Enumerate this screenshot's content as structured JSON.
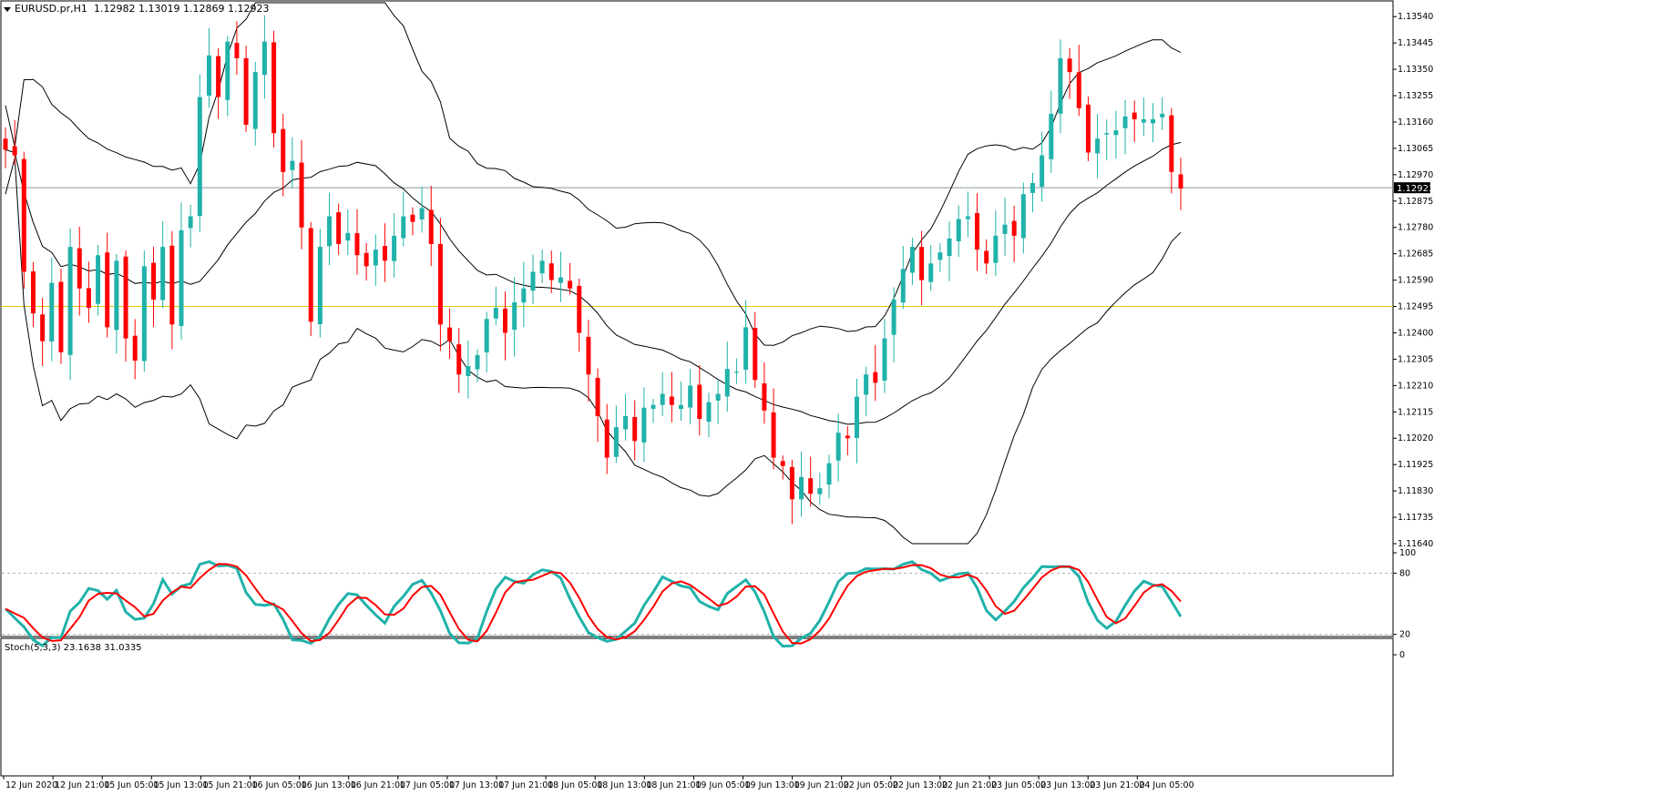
{
  "header": {
    "symbol_text": "EURUSD.pr,H1",
    "ohlc_text": "1.12982 1.13019 1.12869 1.12923"
  },
  "current_price_label": "1.12923",
  "stoch_header": "Stoch(5,3,3) 23.1638 31.0335",
  "colors": {
    "bull": "#20b2aa",
    "bear": "#ff0000",
    "bands": "#000000",
    "price_line": "#8a9aa0",
    "level_line": "#e6c800",
    "stoch_main": "#20b2aa",
    "stoch_signal": "#ff0000"
  },
  "chart_data": [
    {
      "type": "candlestick",
      "overlay": "Bollinger Bands",
      "ylim": [
        1.1164,
        1.1359
      ],
      "y_ticks": [
        "1.13540",
        "1.13445",
        "1.13350",
        "1.13255",
        "1.13160",
        "1.13065",
        "1.12970",
        "1.12875",
        "1.12780",
        "1.12685",
        "1.12590",
        "1.12495",
        "1.12400",
        "1.12305",
        "1.12210",
        "1.12115",
        "1.12020",
        "1.11925",
        "1.11830",
        "1.11735",
        "1.11640"
      ],
      "x_labels": [
        "12 Jun 2020",
        "12 Jun 21:00",
        "15 Jun 05:00",
        "15 Jun 13:00",
        "15 Jun 21:00",
        "16 Jun 05:00",
        "16 Jun 13:00",
        "16 Jun 21:00",
        "17 Jun 05:00",
        "17 Jun 13:00",
        "17 Jun 21:00",
        "18 Jun 05:00",
        "18 Jun 13:00",
        "18 Jun 21:00",
        "19 Jun 05:00",
        "19 Jun 13:00",
        "19 Jun 21:00",
        "22 Jun 05:00",
        "22 Jun 13:00",
        "22 Jun 21:00",
        "23 Jun 05:00",
        "23 Jun 13:00",
        "23 Jun 21:00",
        "24 Jun 05:00"
      ],
      "current_price": 1.12923,
      "horizontal_level": 1.12495,
      "close_path": [
        1.1306,
        1.1304,
        1.1262,
        1.1247,
        1.1237,
        1.1258,
        1.1233,
        1.1271,
        1.1256,
        1.1249,
        1.1268,
        1.1242,
        1.1266,
        1.1238,
        1.123,
        1.1264,
        1.1252,
        1.1271,
        1.1243,
        1.1277,
        1.1282,
        1.1325,
        1.134,
        1.1325,
        1.1345,
        1.1339,
        1.1315,
        1.1334,
        1.1345,
        1.1312,
        1.1298,
        1.1302,
        1.1278,
        1.1244,
        1.1271,
        1.1282,
        1.1272,
        1.1276,
        1.1268,
        1.1264,
        1.127,
        1.1266,
        1.1275,
        1.1282,
        1.128,
        1.1285,
        1.1272,
        1.1243,
        1.1237,
        1.1225,
        1.1228,
        1.1232,
        1.1245,
        1.1249,
        1.124,
        1.1251,
        1.1256,
        1.1262,
        1.1266,
        1.1259,
        1.126,
        1.1256,
        1.124,
        1.1225,
        1.121,
        1.1195,
        1.1206,
        1.121,
        1.1201,
        1.1213,
        1.1214,
        1.1218,
        1.1214,
        1.1214,
        1.1221,
        1.1209,
        1.1215,
        1.1218,
        1.1227,
        1.1226,
        1.1242,
        1.1223,
        1.1212,
        1.1195,
        1.1192,
        1.118,
        1.1188,
        1.1182,
        1.1184,
        1.1193,
        1.1204,
        1.1202,
        1.1217,
        1.1225,
        1.1222,
        1.1238,
        1.1252,
        1.1263,
        1.1271,
        1.1259,
        1.1265,
        1.1269,
        1.1274,
        1.1281,
        1.1282,
        1.127,
        1.1265,
        1.1275,
        1.1279,
        1.1275,
        1.129,
        1.1294,
        1.1304,
        1.1319,
        1.1339,
        1.1334,
        1.1321,
        1.1305,
        1.131,
        1.1312,
        1.1313,
        1.1318,
        1.1317,
        1.1317,
        1.1317,
        1.1319,
        1.1298,
        1.1292
      ],
      "stochastic": {
        "label": "Stoch(5,3,3)",
        "main_last": 23.1638,
        "signal_last": 31.0335,
        "levels": [
          80,
          20
        ],
        "ylim": [
          0,
          100
        ],
        "y_ticks": [
          "100",
          "80",
          "20",
          "0"
        ]
      }
    }
  ]
}
